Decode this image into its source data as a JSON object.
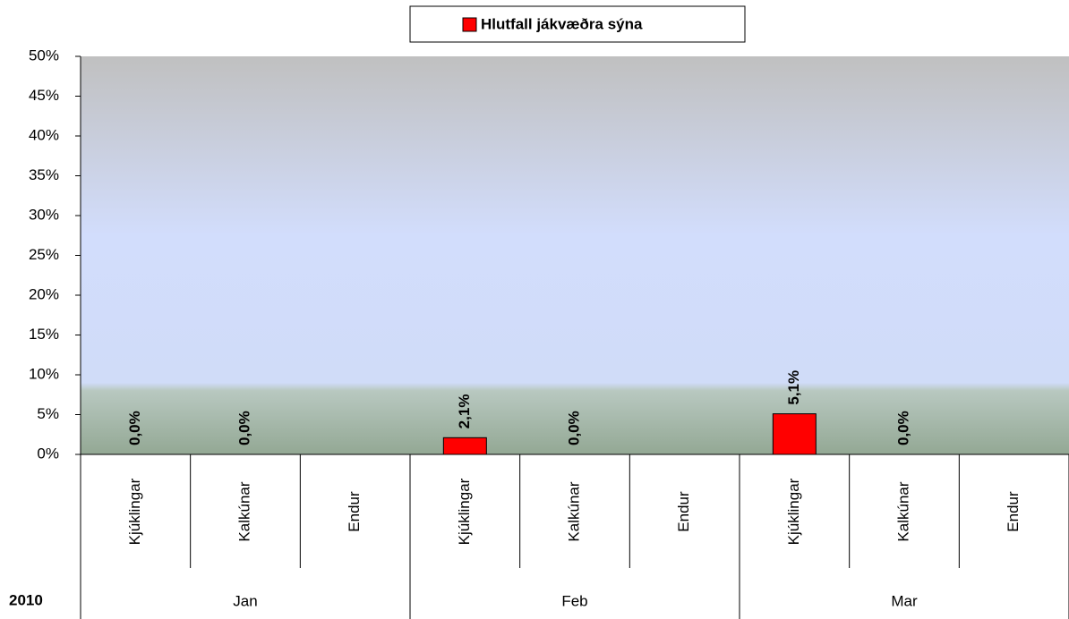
{
  "chart_data": {
    "type": "bar",
    "series": [
      {
        "name": "Hlutfall jákvæðra sýna",
        "color": "#ff0000",
        "values": [
          0.0,
          0.0,
          null,
          2.1,
          0.0,
          null,
          5.1,
          0.0,
          null
        ],
        "value_labels": [
          "0,0%",
          "0,0%",
          null,
          "2,1%",
          "0,0%",
          null,
          "5,1%",
          "0,0%",
          null
        ]
      }
    ],
    "categories": [
      "Kjúklingar",
      "Kalkúnar",
      "Endur",
      "Kjúklingar",
      "Kalkúnar",
      "Endur",
      "Kjúklingar",
      "Kalkúnar",
      "Endur"
    ],
    "groups": [
      "Jan",
      "Feb",
      "Mar"
    ],
    "group_axis_label": "2010",
    "ylim": [
      0,
      50
    ],
    "yticks": [
      {
        "value": 0,
        "label": "0%"
      },
      {
        "value": 5,
        "label": "5%"
      },
      {
        "value": 10,
        "label": "10%"
      },
      {
        "value": 15,
        "label": "15%"
      },
      {
        "value": 20,
        "label": "20%"
      },
      {
        "value": 25,
        "label": "25%"
      },
      {
        "value": 30,
        "label": "30%"
      },
      {
        "value": 35,
        "label": "35%"
      },
      {
        "value": 40,
        "label": "40%"
      },
      {
        "value": 45,
        "label": "45%"
      },
      {
        "value": 50,
        "label": "50%"
      }
    ],
    "legend": "top"
  }
}
